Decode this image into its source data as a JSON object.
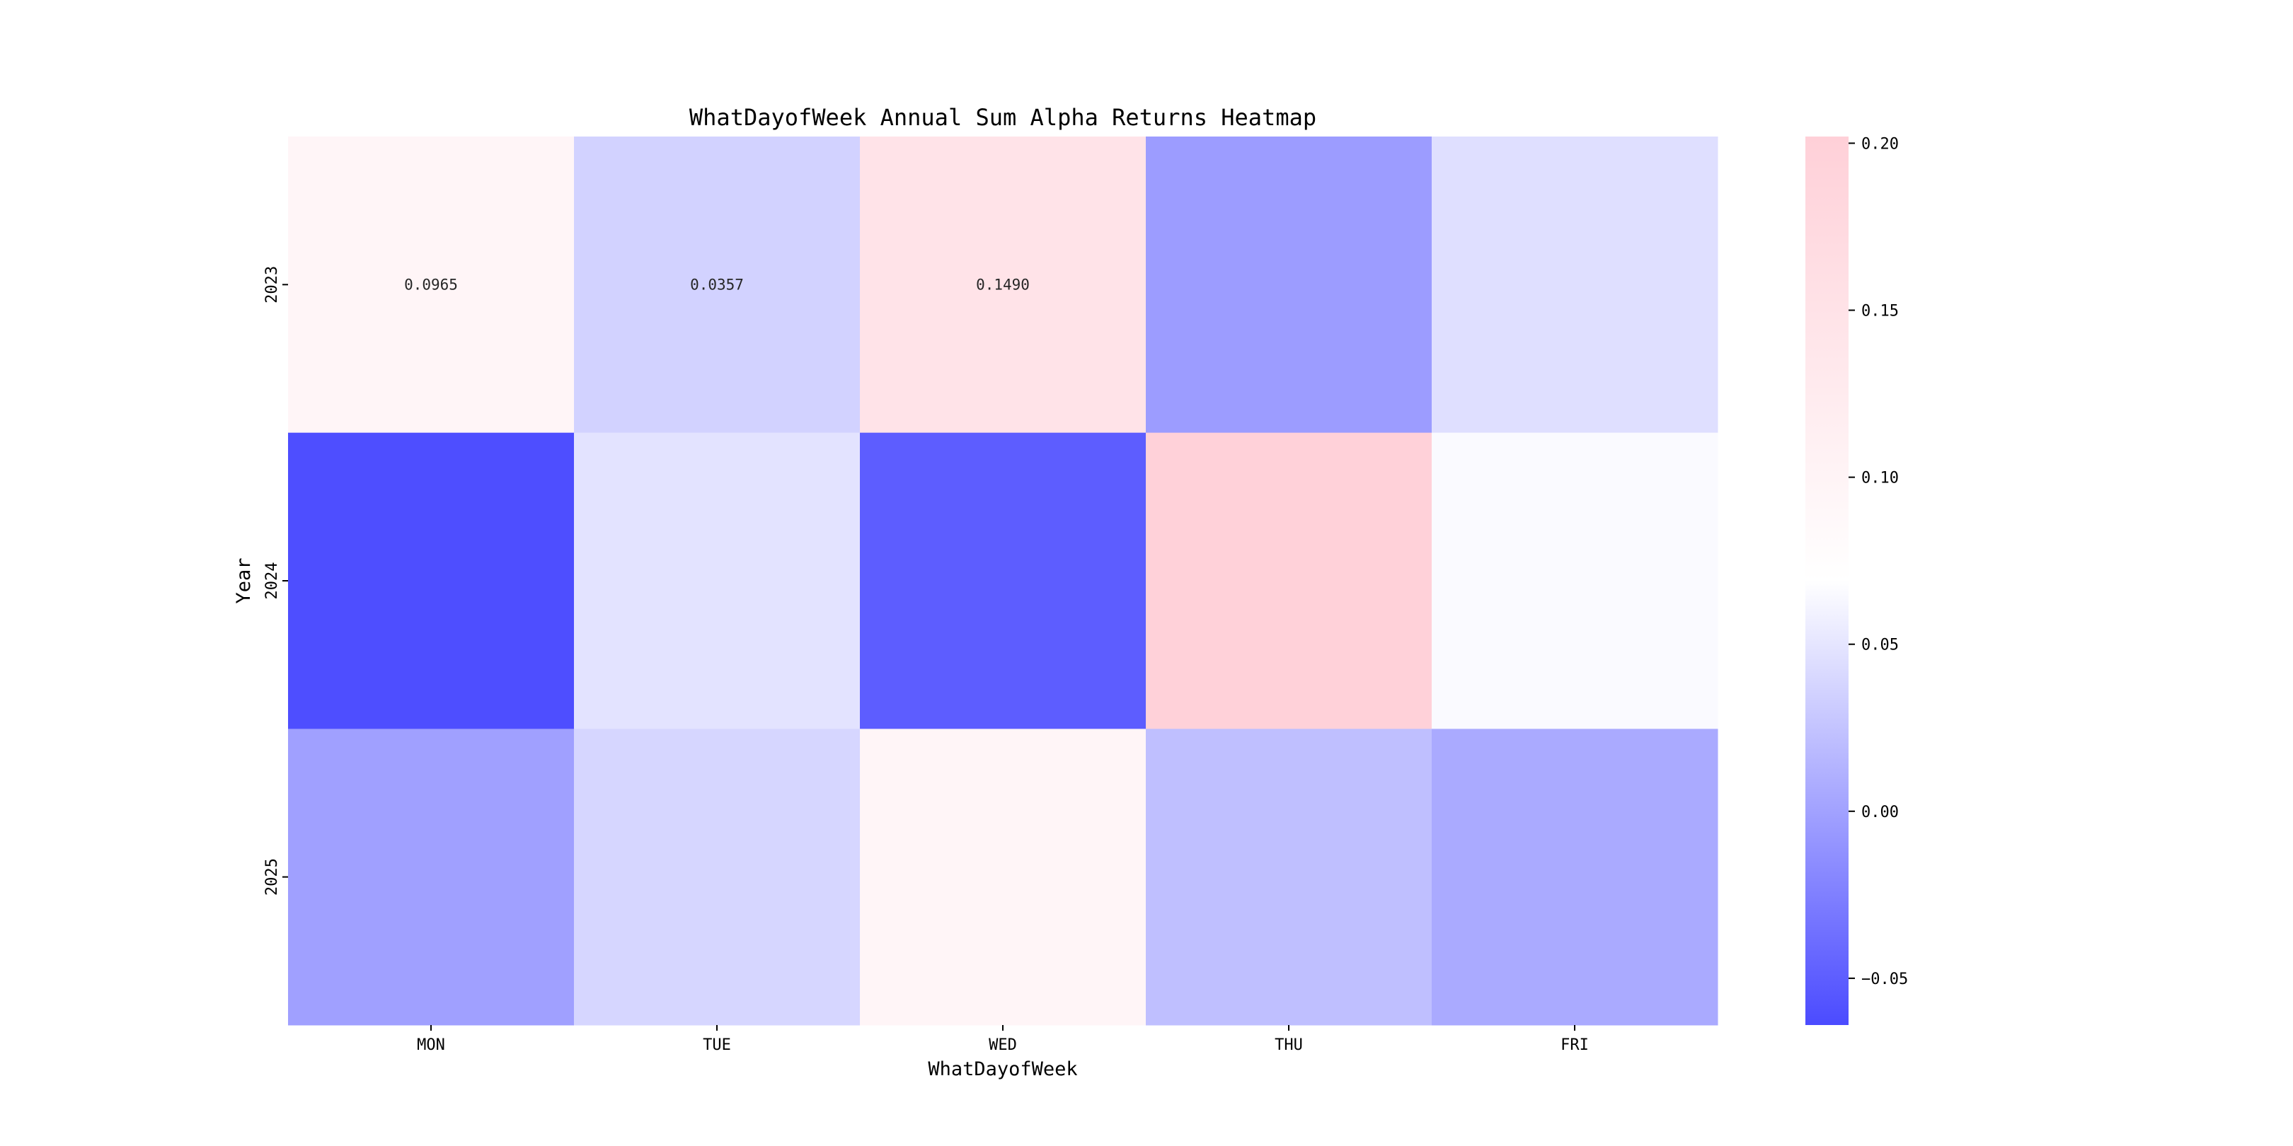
{
  "chart_data": {
    "type": "heatmap",
    "title": "WhatDayofWeek Annual Sum Alpha Returns Heatmap",
    "xlabel": "WhatDayofWeek",
    "ylabel": "Year",
    "x_categories": [
      "MON",
      "TUE",
      "WED",
      "THU",
      "FRI"
    ],
    "y_categories": [
      "2023",
      "2024",
      "2025"
    ],
    "values": [
      [
        0.0965,
        0.0357,
        0.149,
        -0.004,
        0.045
      ],
      [
        -0.062,
        0.048,
        -0.051,
        0.2,
        0.065
      ],
      [
        -0.001,
        0.039,
        0.097,
        0.022,
        0.006
      ]
    ],
    "annotations": [
      {
        "row": 0,
        "col": 0,
        "text": "0.0965"
      },
      {
        "row": 0,
        "col": 1,
        "text": "0.0357"
      },
      {
        "row": 0,
        "col": 2,
        "text": "0.1490"
      }
    ],
    "colorbar": {
      "vmin": -0.064,
      "vmax": 0.202,
      "ticks": [
        -0.05,
        0.0,
        0.05,
        0.1,
        0.15,
        0.2
      ],
      "tick_labels": [
        "−0.05",
        "0.00",
        "0.05",
        "0.10",
        "0.15",
        "0.20"
      ],
      "low_color": "#4b4bff",
      "mid_color": "#ffffff",
      "high_color": "#ffd0d8"
    }
  }
}
